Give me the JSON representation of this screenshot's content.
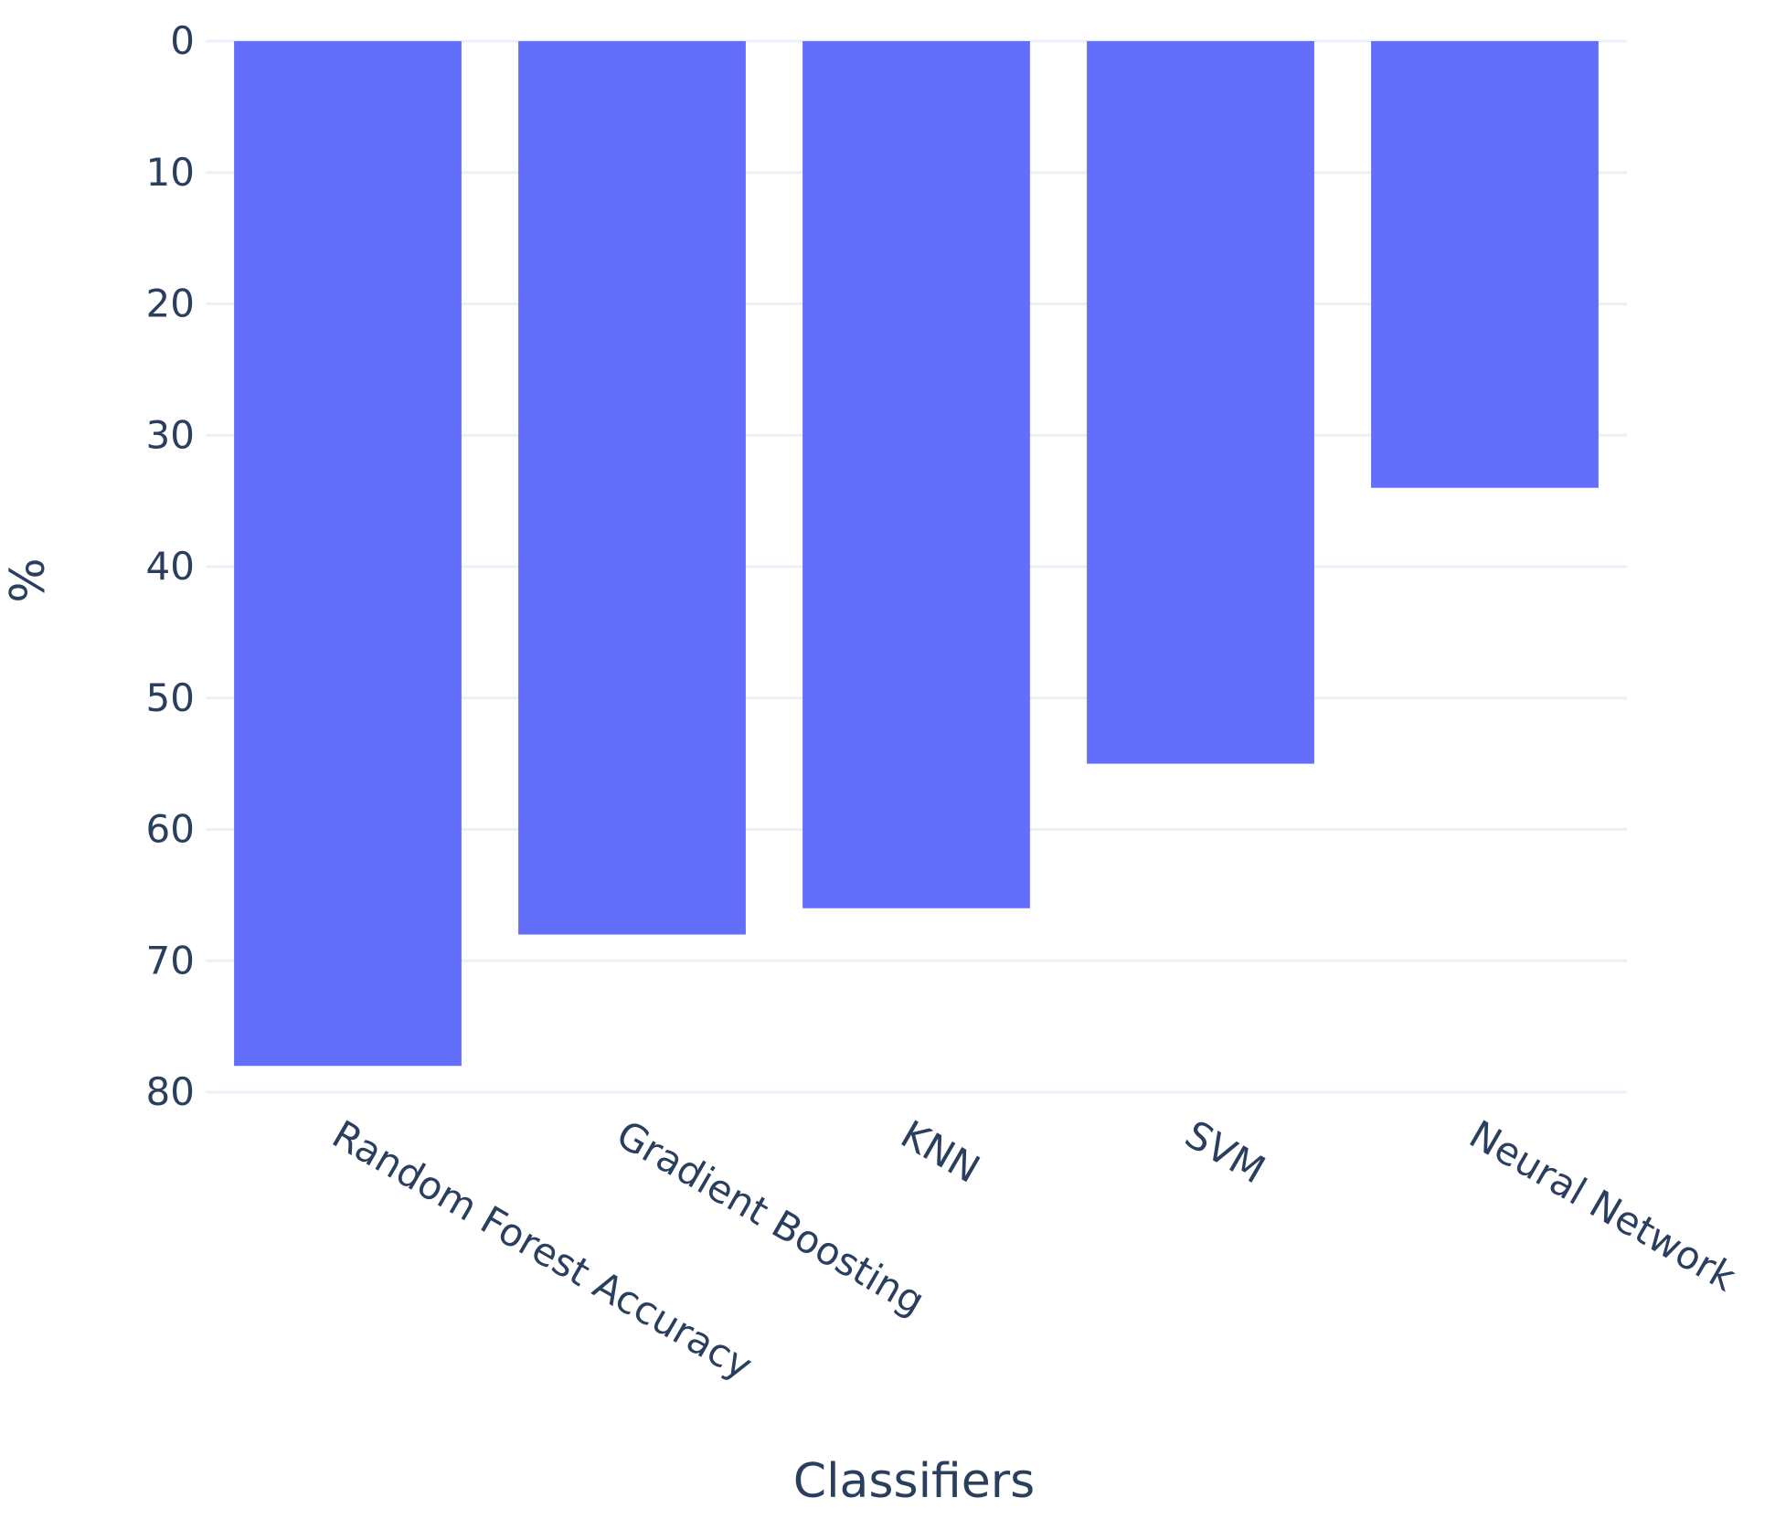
{
  "chart_data": {
    "type": "bar",
    "categories": [
      "Random Forest Accuracy",
      "Gradient Boosting",
      "KNN",
      "SVM",
      "Neural Network"
    ],
    "values": [
      78,
      68,
      66,
      55,
      34
    ],
    "xlabel": "Classifiers",
    "ylabel": "%",
    "ylim": [
      0,
      80
    ],
    "y_reversed": true,
    "yticks": [
      0,
      10,
      20,
      30,
      40,
      50,
      60,
      70,
      80
    ],
    "grid": true,
    "bar_color": "#636efa"
  }
}
